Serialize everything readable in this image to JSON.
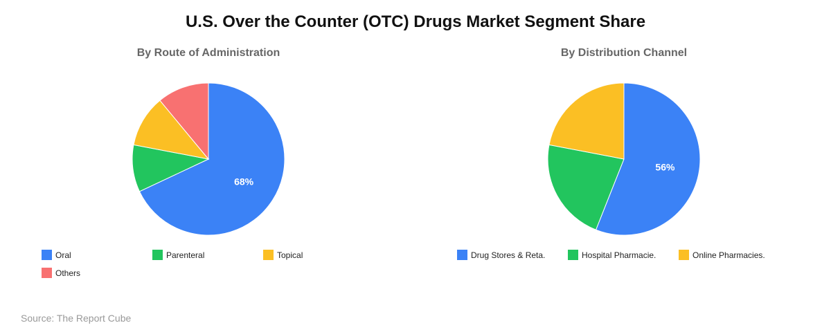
{
  "title": "U.S. Over the Counter (OTC) Drugs Market Segment Share",
  "source": "Source: The Report Cube",
  "chart_data": [
    {
      "type": "pie",
      "title": "By Route of Administration",
      "categories": [
        "Oral",
        "Parenteral",
        "Topical",
        "Others"
      ],
      "values": [
        68,
        10,
        11,
        11
      ],
      "colors": [
        "#3b82f6",
        "#22c55e",
        "#fbbf24",
        "#f87171"
      ],
      "data_labels": [
        "68%",
        "",
        "",
        ""
      ],
      "legend_position": "bottom"
    },
    {
      "type": "pie",
      "title": "By Distribution Channel",
      "categories": [
        "Drug Stores & Reta.",
        "Hospital Pharmacie.",
        "Online Pharmacies."
      ],
      "values": [
        56,
        22,
        22
      ],
      "colors": [
        "#3b82f6",
        "#22c55e",
        "#fbbf24"
      ],
      "data_labels": [
        "56%",
        "",
        ""
      ],
      "legend_position": "bottom"
    }
  ]
}
